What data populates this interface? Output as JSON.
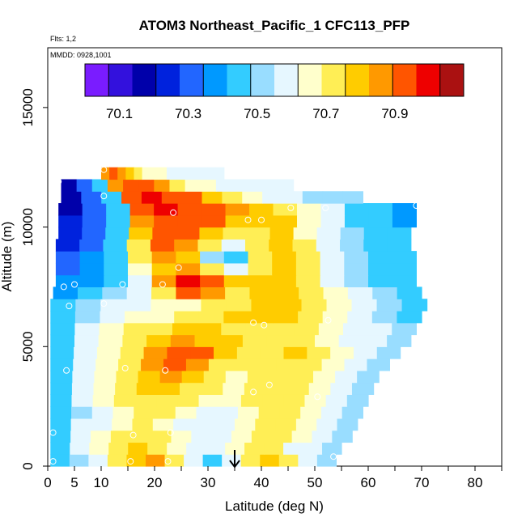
{
  "chart_data": {
    "type": "heatmap",
    "title": "ATOM3 Northeast_Pacific_1 CFC113_PFP",
    "flights_label": "Flts: 1,2",
    "dates_label": "MMDD: 0928,1001",
    "xlabel": "Latitude (deg N)",
    "ylabel": "Altitude (m)",
    "xlim": [
      0,
      85
    ],
    "ylim": [
      0,
      17500
    ],
    "x_ticks": [
      0,
      5,
      10,
      20,
      30,
      40,
      50,
      60,
      70,
      80
    ],
    "x_minor_ticks": [
      15,
      25,
      35,
      45,
      55,
      65,
      75,
      85
    ],
    "y_ticks": [
      0,
      5000,
      10000,
      15000
    ],
    "colorbar": {
      "min": 70.0,
      "max": 71.1,
      "labels": [
        70.1,
        70.3,
        70.5,
        70.7,
        70.9
      ],
      "colors": [
        "#7a1cff",
        "#3311dd",
        "#0000aa",
        "#0022dd",
        "#2266ff",
        "#0099ff",
        "#33ccff",
        "#99ddff",
        "#e6f7ff",
        "#ffffcc",
        "#ffee55",
        "#ffcc00",
        "#ff9900",
        "#ff5500",
        "#ee0000",
        "#aa1111"
      ]
    },
    "altitude_bands": [
      {
        "alt": 0,
        "lat_range": [
          0.5,
          54
        ],
        "values": [
          70.45,
          70.5,
          70.6,
          70.75,
          70.8,
          70.85,
          70.75,
          70.55,
          70.45,
          70.6,
          70.7,
          70.8,
          70.7,
          70.6,
          70.5
        ]
      },
      {
        "alt": 500,
        "lat_range": [
          0.5,
          55
        ],
        "values": [
          70.45,
          70.55,
          70.65,
          70.75,
          70.8,
          70.75,
          70.65,
          70.55,
          70.55,
          70.65,
          70.75,
          70.7,
          70.6,
          70.55,
          70.5
        ]
      },
      {
        "alt": 1000,
        "lat_range": [
          0.5,
          57
        ],
        "values": [
          70.45,
          70.55,
          70.65,
          70.7,
          70.75,
          70.7,
          70.65,
          70.6,
          70.6,
          70.65,
          70.7,
          70.7,
          70.65,
          70.6,
          70.5
        ]
      },
      {
        "alt": 1500,
        "lat_range": [
          0.5,
          58
        ],
        "values": [
          70.45,
          70.55,
          70.6,
          70.65,
          70.7,
          70.65,
          70.6,
          70.55,
          70.6,
          70.65,
          70.7,
          70.7,
          70.65,
          70.6,
          70.5
        ]
      },
      {
        "alt": 2000,
        "lat_range": [
          0.5,
          59
        ],
        "values": [
          70.45,
          70.5,
          70.6,
          70.65,
          70.7,
          70.7,
          70.65,
          70.6,
          70.6,
          70.65,
          70.7,
          70.7,
          70.65,
          70.6,
          70.5
        ]
      },
      {
        "alt": 2500,
        "lat_range": [
          0.5,
          60
        ],
        "values": [
          70.45,
          70.55,
          70.65,
          70.7,
          70.75,
          70.75,
          70.7,
          70.65,
          70.65,
          70.7,
          70.72,
          70.72,
          70.65,
          70.6,
          70.5
        ]
      },
      {
        "alt": 3000,
        "lat_range": [
          0.5,
          61
        ],
        "values": [
          70.45,
          70.55,
          70.65,
          70.72,
          70.78,
          70.8,
          70.75,
          70.7,
          70.65,
          70.7,
          70.75,
          70.72,
          70.65,
          70.55,
          70.5
        ]
      },
      {
        "alt": 3500,
        "lat_range": [
          0.5,
          62
        ],
        "values": [
          70.45,
          70.55,
          70.65,
          70.75,
          70.8,
          70.85,
          70.8,
          70.7,
          70.65,
          70.7,
          70.75,
          70.7,
          70.65,
          70.55,
          70.5
        ]
      },
      {
        "alt": 4000,
        "lat_range": [
          0.5,
          64
        ],
        "values": [
          70.45,
          70.55,
          70.65,
          70.75,
          70.85,
          70.9,
          70.85,
          70.75,
          70.7,
          70.72,
          70.75,
          70.7,
          70.62,
          70.55,
          70.5
        ]
      },
      {
        "alt": 4500,
        "lat_range": [
          0.5,
          66
        ],
        "values": [
          70.45,
          70.55,
          70.65,
          70.75,
          70.85,
          70.95,
          70.9,
          70.8,
          70.75,
          70.75,
          70.78,
          70.7,
          70.62,
          70.55,
          70.5
        ]
      },
      {
        "alt": 5000,
        "lat_range": [
          0.5,
          68
        ],
        "values": [
          70.45,
          70.55,
          70.65,
          70.72,
          70.8,
          70.85,
          70.82,
          70.78,
          70.75,
          70.75,
          70.75,
          70.68,
          70.6,
          70.55,
          70.5
        ]
      },
      {
        "alt": 5500,
        "lat_range": [
          0.5,
          69
        ],
        "values": [
          70.45,
          70.55,
          70.62,
          70.7,
          70.75,
          70.78,
          70.78,
          70.75,
          70.75,
          70.75,
          70.72,
          70.65,
          70.6,
          70.55,
          70.5
        ]
      },
      {
        "alt": 6000,
        "lat_range": [
          0.5,
          70
        ],
        "values": [
          70.45,
          70.52,
          70.58,
          70.65,
          70.68,
          70.72,
          70.75,
          70.78,
          70.8,
          70.8,
          70.72,
          70.65,
          70.58,
          70.52,
          70.48
        ]
      },
      {
        "alt": 6500,
        "lat_range": [
          0.5,
          71
        ],
        "values": [
          70.45,
          70.5,
          70.55,
          70.6,
          70.62,
          70.65,
          70.7,
          70.75,
          70.78,
          70.78,
          70.72,
          70.65,
          70.58,
          70.52,
          70.48
        ]
      },
      {
        "alt": 7000,
        "lat_range": [
          1,
          70
        ],
        "values": [
          70.4,
          70.45,
          70.5,
          70.55,
          70.75,
          70.9,
          70.85,
          70.75,
          70.78,
          70.78,
          70.72,
          70.62,
          70.55,
          70.5,
          70.45
        ]
      },
      {
        "alt": 7500,
        "lat_range": [
          1.5,
          69
        ],
        "values": [
          70.35,
          70.4,
          70.45,
          70.6,
          70.85,
          71.0,
          70.95,
          70.8,
          70.78,
          70.78,
          70.7,
          70.6,
          70.52,
          70.48,
          70.45
        ]
      },
      {
        "alt": 8000,
        "lat_range": [
          1.5,
          69
        ],
        "values": [
          70.3,
          70.35,
          70.45,
          70.65,
          70.8,
          70.85,
          70.7,
          70.55,
          70.75,
          70.78,
          70.7,
          70.6,
          70.5,
          70.45,
          70.42
        ]
      },
      {
        "alt": 8500,
        "lat_range": [
          1.5,
          69
        ],
        "values": [
          70.3,
          70.35,
          70.45,
          70.7,
          70.85,
          70.8,
          70.5,
          70.45,
          70.72,
          70.78,
          70.7,
          70.58,
          70.5,
          70.45,
          70.42
        ]
      },
      {
        "alt": 9000,
        "lat_range": [
          1.5,
          68
        ],
        "values": [
          70.25,
          70.32,
          70.45,
          70.75,
          70.9,
          70.85,
          70.7,
          70.6,
          70.72,
          70.78,
          70.7,
          70.58,
          70.5,
          70.45,
          70.42
        ]
      },
      {
        "alt": 9500,
        "lat_range": [
          2,
          68
        ],
        "values": [
          70.22,
          70.3,
          70.45,
          70.8,
          70.95,
          70.9,
          70.8,
          70.7,
          70.75,
          70.78,
          70.68,
          70.58,
          70.5,
          70.45,
          70.42
        ]
      },
      {
        "alt": 10000,
        "lat_range": [
          2,
          69
        ],
        "values": [
          70.22,
          70.3,
          70.45,
          70.85,
          70.95,
          70.95,
          70.9,
          70.8,
          70.78,
          70.78,
          70.68,
          70.58,
          70.48,
          70.42,
          70.4
        ]
      },
      {
        "alt": 10500,
        "lat_range": [
          2,
          69
        ],
        "values": [
          70.2,
          70.3,
          70.45,
          70.9,
          71.0,
          70.95,
          70.9,
          70.85,
          70.8,
          70.75,
          70.65,
          70.55,
          70.48,
          70.42,
          70.4
        ]
      },
      {
        "alt": 11000,
        "lat_range": [
          2.5,
          59
        ],
        "values": [
          70.2,
          70.28,
          70.42,
          70.9,
          71.0,
          70.95,
          70.9,
          70.8,
          70.72,
          70.65,
          70.6,
          70.55,
          70.52,
          70.5,
          70.5
        ]
      },
      {
        "alt": 11500,
        "lat_range": [
          2.5,
          46
        ],
        "values": [
          70.2,
          70.28,
          70.42,
          70.85,
          70.95,
          70.9,
          70.85,
          70.75,
          70.68,
          70.62,
          70.6,
          70.58,
          70.56,
          70.55,
          70.55
        ]
      },
      {
        "alt": 12000,
        "lat_range": [
          10,
          33
        ],
        "values": [
          70.85,
          70.9,
          70.85,
          70.8,
          70.72,
          70.68,
          70.65,
          70.62,
          70.6,
          70.6,
          70.6,
          70.6,
          70.6,
          70.6,
          70.6
        ]
      }
    ],
    "sample_points": [
      [
        1,
        200
      ],
      [
        15.5,
        200
      ],
      [
        22.5,
        200
      ],
      [
        53.5,
        400
      ],
      [
        1,
        1400
      ],
      [
        16,
        1300
      ],
      [
        23,
        1400
      ],
      [
        3.5,
        4000
      ],
      [
        14.5,
        4100
      ],
      [
        22,
        4000
      ],
      [
        38.5,
        3100
      ],
      [
        41.5,
        3400
      ],
      [
        50.5,
        2900
      ],
      [
        38.5,
        6000
      ],
      [
        40.5,
        5900
      ],
      [
        52.5,
        6100
      ],
      [
        71,
        6100
      ],
      [
        4,
        6700
      ],
      [
        10.5,
        6800
      ],
      [
        3,
        7500
      ],
      [
        5,
        7600
      ],
      [
        14,
        7600
      ],
      [
        21.5,
        7600
      ],
      [
        24.5,
        8300
      ],
      [
        2,
        11900
      ],
      [
        10.5,
        12400
      ],
      [
        10.5,
        11300
      ],
      [
        23.5,
        10600
      ],
      [
        37.5,
        10300
      ],
      [
        40,
        10300
      ],
      [
        45.5,
        10800
      ],
      [
        52,
        10800
      ],
      [
        69,
        10900
      ]
    ],
    "arrow_lat": 35
  }
}
